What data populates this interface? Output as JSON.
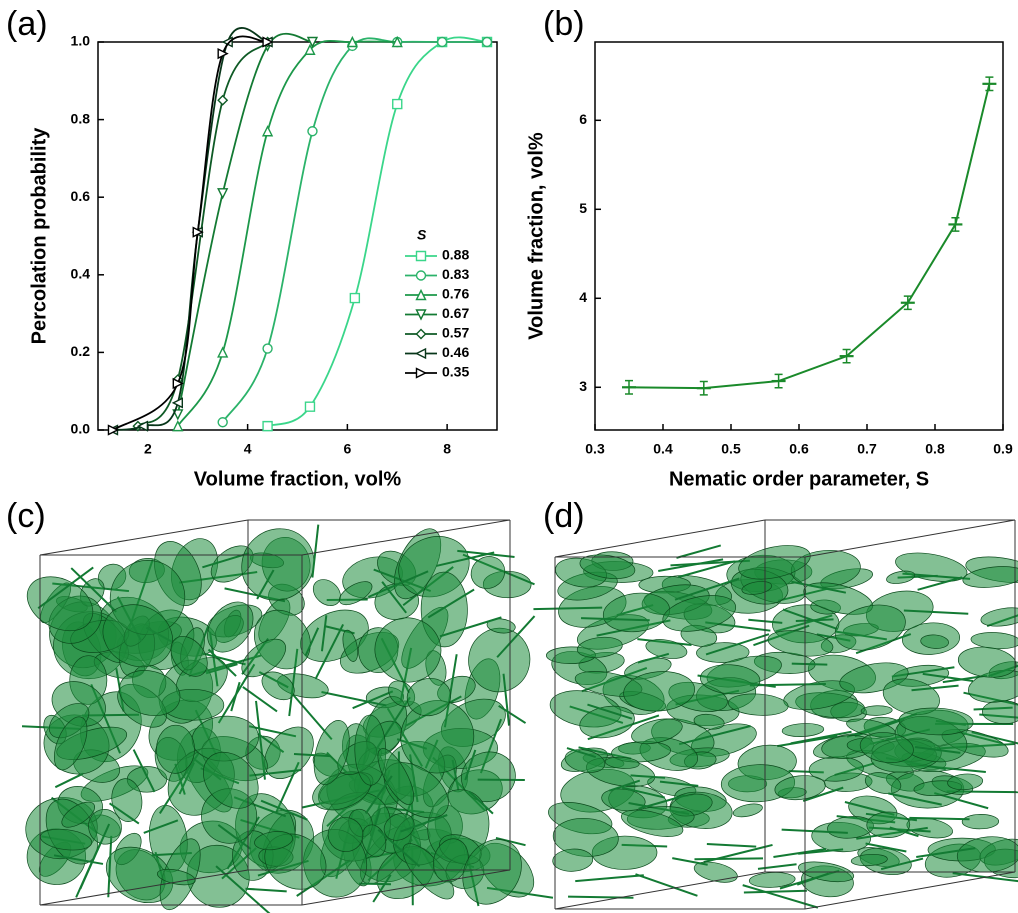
{
  "panels": [
    "(a)",
    "(b)",
    "(c)",
    "(d)"
  ],
  "chart_data": [
    {
      "type": "scatter",
      "smooth": true,
      "x_label": "Volume fraction, vol%",
      "y_label": "Percolation probability",
      "legend_title": "S",
      "legend": "right",
      "xlim": [
        1,
        9
      ],
      "xticks": [
        2,
        4,
        6,
        8
      ],
      "ylim": [
        0,
        1
      ],
      "yticks": [
        {
          "value": 0,
          "label": "0.0"
        },
        0.2,
        0.4,
        0.6,
        0.8,
        {
          "value": 1,
          "label": "1.0"
        }
      ],
      "series": [
        {
          "name": "0.88",
          "color": "#3ad68a",
          "marker": "square",
          "x": [
            4.4,
            5.25,
            6.15,
            7.0,
            7.9,
            8.8
          ],
          "values": [
            0.01,
            0.06,
            0.34,
            0.84,
            1.0,
            1.0
          ]
        },
        {
          "name": "0.83",
          "color": "#2bb36a",
          "marker": "circle",
          "x": [
            3.5,
            4.4,
            5.3,
            6.1,
            7.0,
            7.9,
            8.8
          ],
          "values": [
            0.02,
            0.21,
            0.77,
            0.99,
            1.0,
            1.0,
            1.0
          ]
        },
        {
          "name": "0.76",
          "color": "#1c984a",
          "marker": "triangle-up",
          "x": [
            2.6,
            3.5,
            4.4,
            5.25,
            6.1,
            7.0
          ],
          "values": [
            0.01,
            0.2,
            0.77,
            0.98,
            1.0,
            1.0
          ]
        },
        {
          "name": "0.67",
          "color": "#137a33",
          "marker": "triangle-down",
          "x": [
            2.6,
            3.5,
            4.4,
            5.3
          ],
          "values": [
            0.04,
            0.61,
            0.99,
            1.0
          ]
        },
        {
          "name": "0.57",
          "color": "#0e5a25",
          "marker": "diamond",
          "x": [
            1.8,
            2.6,
            3.5,
            4.4
          ],
          "values": [
            0.01,
            0.13,
            0.85,
            1.0
          ]
        },
        {
          "name": "0.46",
          "color": "#08361a",
          "marker": "triangle-left",
          "x": [
            1.3,
            1.9,
            2.6,
            3.0,
            3.6,
            4.4
          ],
          "values": [
            0.0,
            0.01,
            0.07,
            0.51,
            1.0,
            1.0
          ]
        },
        {
          "name": "0.35",
          "color": "#000000",
          "marker": "triangle-right",
          "x": [
            1.3,
            2.6,
            3.0,
            3.5,
            4.4
          ],
          "values": [
            0.0,
            0.12,
            0.51,
            0.97,
            1.0
          ]
        }
      ]
    },
    {
      "type": "line",
      "x_label": "Nematic order parameter, S",
      "y_label": "Volume fraction, vol%",
      "xlim": [
        0.3,
        0.9
      ],
      "xticks": [
        0.3,
        0.4,
        0.5,
        0.6,
        0.7,
        0.8,
        0.9
      ],
      "ylim": [
        2.52,
        6.88
      ],
      "yticks": [
        3,
        4,
        5,
        6
      ],
      "color": "#1a8a2a",
      "x": [
        0.35,
        0.46,
        0.57,
        0.67,
        0.76,
        0.83,
        0.88
      ],
      "values": [
        3.0,
        2.99,
        3.07,
        3.35,
        3.95,
        4.83,
        6.41
      ],
      "errors": [
        0.03,
        0.03,
        0.03,
        0.03,
        0.03,
        0.03,
        0.03
      ]
    }
  ]
}
